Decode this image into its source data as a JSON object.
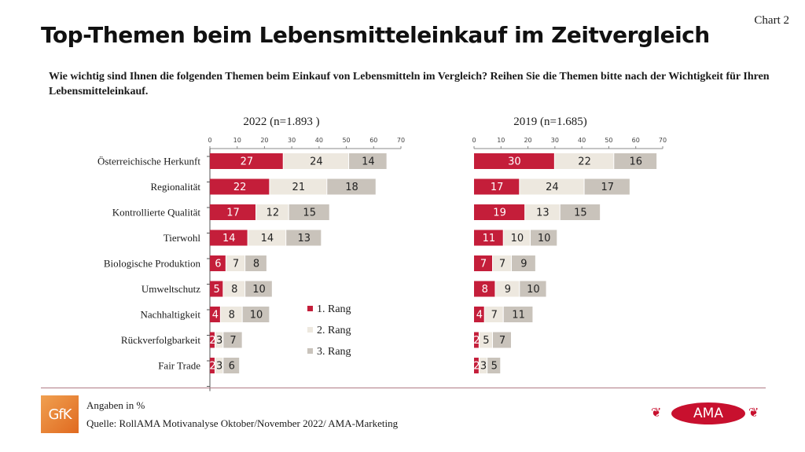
{
  "page": {
    "chart_number": "Chart 2",
    "title": "Top-Themen beim Lebensmitteleinkauf im Zeitvergleich",
    "question": "Wie wichtig sind Ihnen die folgenden Themen beim Einkauf von Lebensmitteln im Vergleich? Reihen Sie die Themen bitte nach der Wichtigkeit für Ihren Lebensmitteleinkauf.",
    "footnote_unit": "Angaben in %",
    "footnote_source": "Quelle: RollAMA Motivanalyse Oktober/November 2022/ AMA-Marketing",
    "logo_left": "GfK",
    "logo_right": "AMA"
  },
  "colors": {
    "rank1": "#c41e3a",
    "rank2": "#ede8df",
    "rank3": "#c9c3bb",
    "rule": "#b07a85"
  },
  "chart_data": [
    {
      "type": "bar",
      "orientation": "horizontal",
      "stacked": true,
      "title": "2022 (n=1.893 )",
      "xlim": [
        0,
        70
      ],
      "xticks": [
        0,
        10,
        20,
        30,
        40,
        50,
        60,
        70
      ],
      "categories": [
        "Österreichische Herkunft",
        "Regionalität",
        "Kontrollierte Qualität",
        "Tierwohl",
        "Biologische Produktion",
        "Umweltschutz",
        "Nachhaltigkeit",
        "Rückverfolgbarkeit",
        "Fair Trade"
      ],
      "series": [
        {
          "name": "1. Rang",
          "values": [
            27,
            22,
            17,
            14,
            6,
            5,
            4,
            2,
            2
          ]
        },
        {
          "name": "2. Rang",
          "values": [
            24,
            21,
            12,
            14,
            7,
            8,
            8,
            3,
            3
          ]
        },
        {
          "name": "3. Rang",
          "values": [
            14,
            18,
            15,
            13,
            8,
            10,
            10,
            7,
            6
          ]
        }
      ],
      "legend": [
        "1. Rang",
        "2. Rang",
        "3. Rang"
      ],
      "legend_position": "bottom-right"
    },
    {
      "type": "bar",
      "orientation": "horizontal",
      "stacked": true,
      "title": "2019 (n=1.685)",
      "xlim": [
        0,
        70
      ],
      "xticks": [
        0,
        10,
        20,
        30,
        40,
        50,
        60,
        70
      ],
      "categories": [
        "Österreichische Herkunft",
        "Regionalität",
        "Kontrollierte Qualität",
        "Tierwohl",
        "Biologische Produktion",
        "Umweltschutz",
        "Nachhaltigkeit",
        "Rückverfolgbarkeit",
        "Fair Trade"
      ],
      "series": [
        {
          "name": "1. Rang",
          "values": [
            30,
            17,
            19,
            11,
            7,
            8,
            4,
            2,
            2
          ]
        },
        {
          "name": "2. Rang",
          "values": [
            22,
            24,
            13,
            10,
            7,
            9,
            7,
            5,
            3
          ]
        },
        {
          "name": "3. Rang",
          "values": [
            16,
            17,
            15,
            10,
            9,
            10,
            11,
            7,
            5
          ]
        }
      ]
    }
  ]
}
